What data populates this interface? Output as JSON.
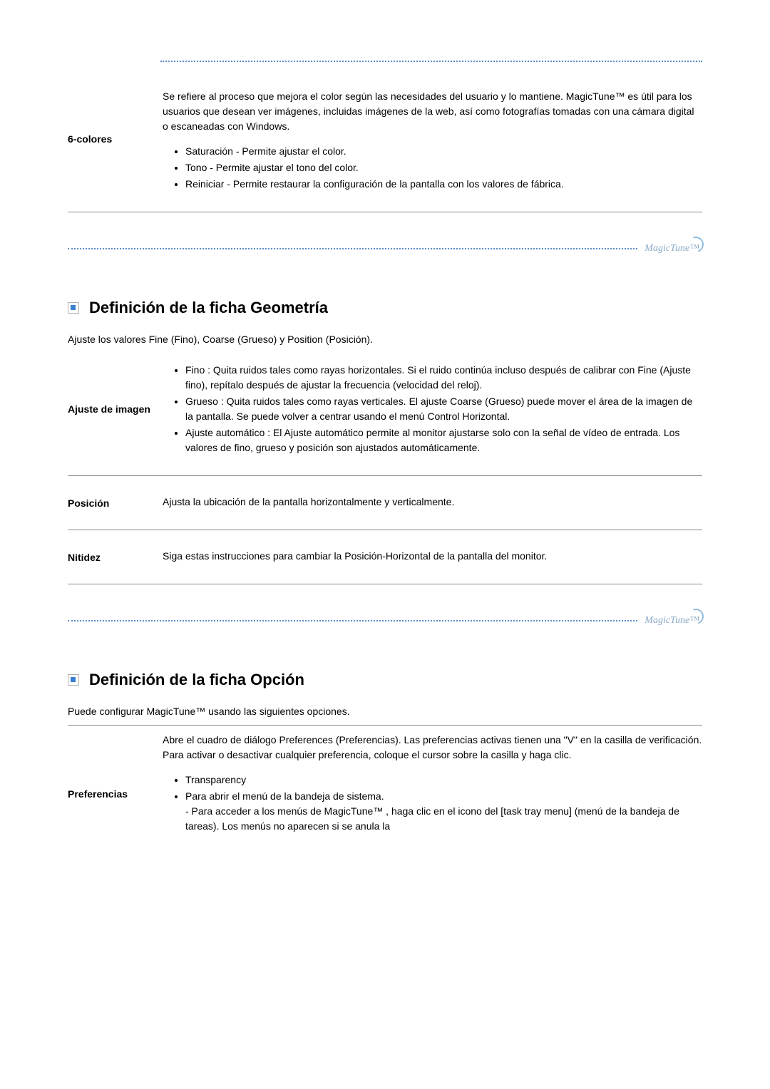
{
  "colors": {
    "dot": "#5b8bc9",
    "rule": "#888888",
    "icon_square": "#3a7ecf",
    "logo_text": "#8aa9c9",
    "logo_arc": "#8fbde0"
  },
  "logo_text": "MagicTune™",
  "top_row": {
    "label": "6-colores",
    "intro": "Se refiere al proceso que mejora el color según las necesidades del usuario y lo mantiene. MagicTune™ es útil para los usuarios que desean ver imágenes, incluidas imágenes de la web, así como fotografías tomadas con una cámara digital o escaneadas con Windows.",
    "bullets": [
      "Saturación - Permite ajustar el color.",
      "Tono - Permite ajustar el tono del color.",
      "Reiniciar - Permite restaurar la configuración de la pantalla con los valores de fábrica."
    ]
  },
  "section_geom": {
    "title": "Definición de la ficha Geometría",
    "sub": "Ajuste los valores Fine (Fino), Coarse (Grueso) y Position (Posición).",
    "rows": [
      {
        "label": "Ajuste de imagen",
        "bullets": [
          "Fino : Quita ruidos tales como rayas horizontales. Si el ruido continúa incluso después de calibrar con Fine (Ajuste fino), repítalo después de ajustar la frecuencia (velocidad del reloj).",
          "Grueso : Quita ruidos tales como rayas verticales. El ajuste Coarse (Grueso) puede mover el área de la imagen de la pantalla. Se puede volver a centrar usando el menú Control Horizontal.",
          "Ajuste automático : El Ajuste automático permite al monitor ajustarse solo con la señal de vídeo de entrada. Los valores de fino, grueso y posición son ajustados automáticamente."
        ]
      },
      {
        "label": "Posición",
        "text": "Ajusta la ubicación de la pantalla horizontalmente y verticalmente."
      },
      {
        "label": "Nitidez",
        "text": "Siga estas instrucciones para cambiar la Posición-Horizontal de la pantalla del monitor."
      }
    ]
  },
  "section_option": {
    "title": "Definición de la ficha Opción",
    "sub": "Puede configurar MagicTune™ usando las siguientes opciones.",
    "prefs": {
      "label": "Preferencias",
      "intro": "Abre el cuadro de diálogo Preferences (Preferencias). Las preferencias activas tienen una \"V\" en la casilla de verificación. Para activar o desactivar cualquier preferencia, coloque el cursor sobre la casilla y haga clic.",
      "bullets": [
        "Transparency",
        "Para abrir el menú de la bandeja de sistema."
      ],
      "sub_note": "- Para acceder a los menús de MagicTune™ , haga clic en el icono del [task tray menu] (menú de la bandeja de tareas). Los menús no aparecen si se anula la"
    }
  }
}
